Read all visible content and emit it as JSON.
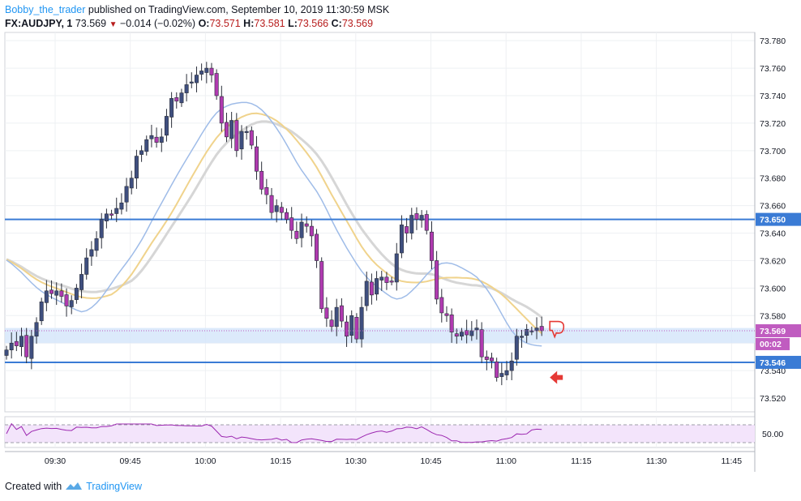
{
  "header": {
    "username": "Bobby_the_trader",
    "published_text": "published on TradingView.com, September 10, 2019 11:30:59 MSK",
    "symbol": "FX:AUDJPY, 1",
    "last_price": "73.569",
    "change": "−0.014 (−0.02%)",
    "open_label": "O:",
    "open": "73.571",
    "high_label": "H:",
    "high": "73.581",
    "low_label": "L:",
    "low": "73.566",
    "close_label": "C:",
    "close": "73.569"
  },
  "footer": {
    "created_with": "Created with",
    "brand": "TradingView"
  },
  "colors": {
    "bull": "#3f4f7f",
    "bear": "#b03ab0",
    "support_line": "#3a7bd5",
    "zone": "#d6e6fa",
    "ma_fast": "#9fbce8",
    "ma_mid": "#f0d38c",
    "ma_slow": "#d6d6d6",
    "rsi_line": "#9c27b0",
    "rsi_band": "#f3e4fb",
    "marker": "#e53935",
    "tag_bg": "#3a7bd5",
    "tag_price": "#c05cc0"
  },
  "chart_data": {
    "type": "candlestick",
    "symbol": "FX:AUDJPY",
    "timeframe_min": 1,
    "x_ticks": [
      "09:30",
      "09:45",
      "10:00",
      "10:15",
      "10:30",
      "10:45",
      "11:00",
      "11:15",
      "11:30",
      "11:45"
    ],
    "y_ticks": [
      73.78,
      73.76,
      73.74,
      73.72,
      73.7,
      73.68,
      73.66,
      73.64,
      73.62,
      73.6,
      73.58,
      73.56,
      73.54,
      73.52
    ],
    "ylim": [
      73.51,
      73.786
    ],
    "horizontal_levels": [
      {
        "price": 73.65,
        "label": "73.650"
      },
      {
        "price": 73.546,
        "label": "73.546"
      }
    ],
    "zone": {
      "from": 73.56,
      "to": 73.571
    },
    "current_price": {
      "price": 73.569,
      "label": "73.569",
      "countdown": "00:02"
    },
    "closes": [
      73.555,
      73.56,
      73.558,
      73.565,
      73.55,
      73.565,
      73.575,
      73.59,
      73.598,
      73.596,
      73.598,
      73.594,
      73.587,
      73.591,
      73.6,
      73.61,
      73.622,
      73.628,
      73.636,
      73.65,
      73.654,
      73.653,
      73.658,
      73.662,
      73.674,
      73.68,
      73.696,
      73.7,
      73.708,
      73.711,
      73.706,
      73.71,
      73.725,
      73.738,
      73.736,
      73.742,
      73.748,
      73.75,
      73.755,
      73.758,
      73.76,
      73.755,
      73.74,
      73.72,
      73.71,
      73.722,
      73.7,
      73.714,
      73.714,
      73.704,
      73.685,
      73.672,
      73.668,
      73.655,
      73.66,
      73.655,
      73.65,
      73.642,
      73.636,
      73.648,
      73.645,
      73.638,
      73.62,
      73.585,
      73.578,
      73.572,
      73.586,
      73.576,
      73.565,
      73.58,
      73.563,
      73.586,
      73.605,
      73.595,
      73.607,
      73.608,
      73.604,
      73.605,
      73.625,
      73.646,
      73.64,
      73.653,
      73.65,
      73.653,
      73.642,
      73.62,
      73.592,
      73.582,
      73.58,
      73.568,
      73.565,
      73.568,
      73.566,
      73.569,
      73.571,
      73.55,
      73.548,
      73.547,
      73.535,
      73.538,
      73.54,
      73.547,
      73.565,
      73.565,
      73.57,
      73.569,
      73.571,
      73.569
    ],
    "series": [
      {
        "name": "price",
        "values": "closes"
      }
    ],
    "rsi": {
      "level": "50.00"
    }
  }
}
